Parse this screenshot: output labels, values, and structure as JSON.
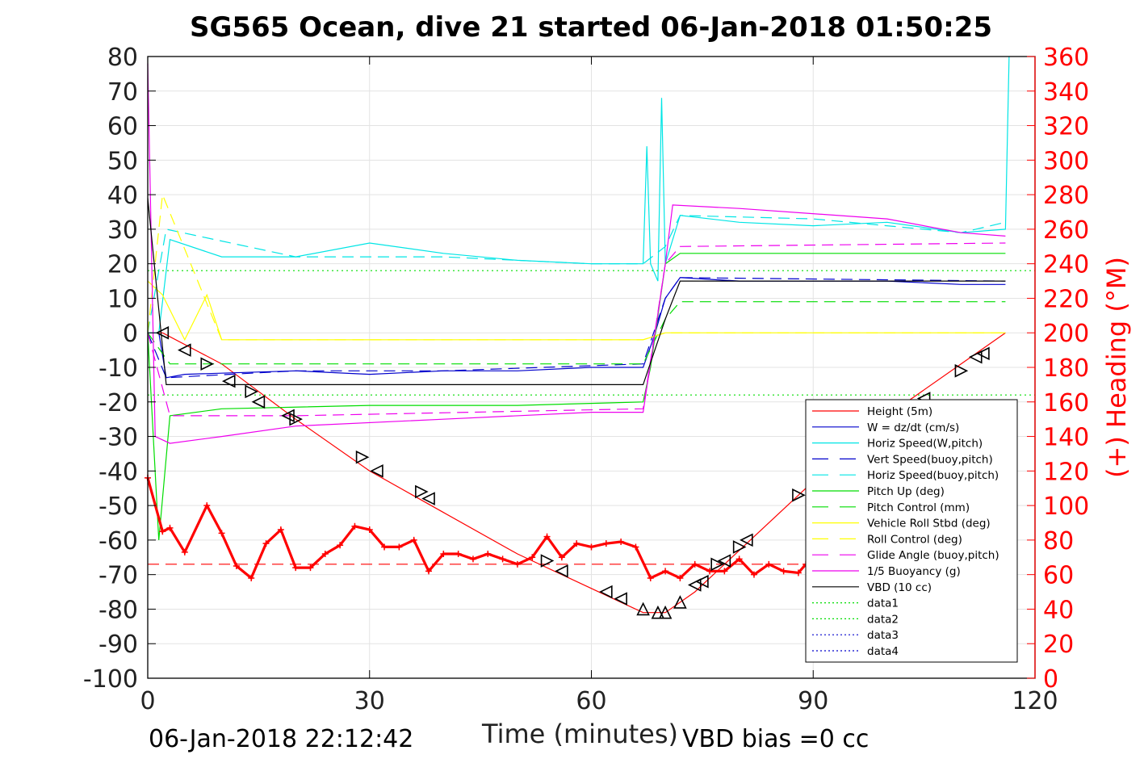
{
  "title": "SG565 Ocean, dive 21 started 06-Jan-2018 01:50:25",
  "footer": {
    "timestamp": "06-Jan-2018 22:12:42",
    "vbd_bias": "VBD bias =0 cc"
  },
  "chart_data": {
    "type": "line",
    "xlabel": "Time (minutes)",
    "ylabel": "",
    "y2label": "(+) Heading (°M)",
    "xlim": [
      0,
      120
    ],
    "ylim": [
      -100,
      80
    ],
    "y2lim": [
      0,
      360
    ],
    "xticks": [
      "0",
      "30",
      "60",
      "90",
      "120"
    ],
    "yticks": [
      "80",
      "70",
      "60",
      "50",
      "40",
      "30",
      "20",
      "10",
      "0",
      "-10",
      "-20",
      "-30",
      "-40",
      "-50",
      "-60",
      "-70",
      "-80",
      "-90",
      "-100"
    ],
    "y2ticks": [
      "360",
      "340",
      "320",
      "300",
      "280",
      "260",
      "240",
      "220",
      "200",
      "180",
      "160",
      "140",
      "120",
      "100",
      "80",
      "60",
      "40",
      "20",
      "0"
    ],
    "grid": true,
    "legend_position": "lower-right",
    "colors": {
      "right_axis": "#ff0000"
    },
    "legend": [
      {
        "label": "Height (5m)",
        "color": "#ff0000",
        "style": "solid"
      },
      {
        "label": "W = dz/dt (cm/s)",
        "color": "#0000cc",
        "style": "solid"
      },
      {
        "label": "Horiz Speed(W,pitch)",
        "color": "#00e5e5",
        "style": "solid"
      },
      {
        "label": "Vert Speed(buoy,pitch)",
        "color": "#0000cc",
        "style": "dashed"
      },
      {
        "label": "Horiz Speed(buoy,pitch)",
        "color": "#00e5e5",
        "style": "dashed"
      },
      {
        "label": "Pitch Up (deg)",
        "color": "#00dd00",
        "style": "solid"
      },
      {
        "label": "Pitch Control (mm)",
        "color": "#00dd00",
        "style": "dashed"
      },
      {
        "label": "Vehicle Roll Stbd (deg)",
        "color": "#ffff00",
        "style": "solid"
      },
      {
        "label": "Roll Control (deg)",
        "color": "#ffff00",
        "style": "dashed"
      },
      {
        "label": "Glide Angle (buoy,pitch)",
        "color": "#ee00ee",
        "style": "dashed"
      },
      {
        "label": "1/5 Buoyancy (g)",
        "color": "#ee00ee",
        "style": "solid"
      },
      {
        "label": "VBD (10 cc)",
        "color": "#000000",
        "style": "solid"
      },
      {
        "label": "data1",
        "color": "#00dd00",
        "style": "dotted"
      },
      {
        "label": "data2",
        "color": "#00dd00",
        "style": "dotted"
      },
      {
        "label": "data3",
        "color": "#0000cc",
        "style": "dotted"
      },
      {
        "label": "data4",
        "color": "#0000cc",
        "style": "dotted"
      }
    ],
    "series": [
      {
        "name": "Height (5m)",
        "x": [
          0,
          2,
          10,
          20,
          30,
          40,
          50,
          60,
          64,
          67,
          70,
          74,
          80,
          90,
          100,
          110,
          116
        ],
        "y": [
          0,
          0,
          -9,
          -25,
          -40,
          -52,
          -64,
          -74,
          -78,
          -81,
          -81,
          -75,
          -63,
          -43,
          -24,
          -9,
          0
        ]
      },
      {
        "name": "W = dz/dt (cm/s)",
        "x": [
          0,
          1.5,
          2.5,
          5,
          20,
          30,
          40,
          50,
          60,
          67,
          68.5,
          70,
          72,
          80,
          90,
          100,
          110,
          116
        ],
        "y": [
          0,
          0,
          -13,
          -12,
          -11,
          -12,
          -11,
          -11,
          -10,
          -10,
          -1,
          10,
          16,
          15,
          15,
          15,
          14,
          14
        ]
      },
      {
        "name": "Horiz Speed(W,pitch)",
        "x": [
          0,
          1.5,
          3,
          10,
          20,
          30,
          40,
          50,
          60,
          67,
          67.5,
          68,
          69,
          69.5,
          70,
          72,
          80,
          90,
          100,
          110,
          116,
          116.5
        ],
        "y": [
          0,
          0,
          27,
          22,
          22,
          26,
          23,
          21,
          20,
          20,
          54,
          20,
          15,
          68,
          20,
          34,
          32,
          31,
          32,
          29,
          30,
          80
        ]
      },
      {
        "name": "Vert Speed(buoy,pitch)",
        "x": [
          0,
          2.5,
          20,
          40,
          67,
          70,
          72,
          116
        ],
        "y": [
          0,
          -13,
          -11,
          -11,
          -9,
          10,
          16,
          15
        ]
      },
      {
        "name": "Horiz Speed(buoy,pitch)",
        "x": [
          0,
          2.5,
          20,
          40,
          60,
          67,
          70,
          72,
          90,
          110,
          116
        ],
        "y": [
          0,
          30,
          22,
          22,
          20,
          20,
          25,
          34,
          33,
          29,
          32
        ]
      },
      {
        "name": "Pitch Up (deg)",
        "x": [
          0,
          1.5,
          3,
          10,
          30,
          50,
          67,
          68,
          70,
          72,
          90,
          116
        ],
        "y": [
          0,
          -60,
          -24,
          -22,
          -21,
          -21,
          -20,
          -10,
          20,
          23,
          23,
          23
        ]
      },
      {
        "name": "Pitch Control (mm)",
        "x": [
          0,
          3,
          67,
          70,
          72,
          116
        ],
        "y": [
          0,
          -9,
          -9,
          4,
          9,
          9
        ]
      },
      {
        "name": "Vehicle Roll Stbd (deg)",
        "x": [
          0,
          2,
          5,
          8,
          10,
          20,
          30,
          40,
          60,
          67,
          70,
          72,
          90,
          110,
          116
        ],
        "y": [
          15,
          11,
          -2,
          11,
          -2,
          -2,
          -2,
          -2,
          -2,
          -2,
          0,
          0,
          0,
          0,
          0
        ]
      },
      {
        "name": "Roll Control (deg)",
        "x": [
          0,
          2,
          10,
          30,
          60,
          67,
          70,
          80,
          116
        ],
        "y": [
          0,
          40,
          -2,
          -2,
          -2,
          -2,
          0,
          0,
          0
        ]
      },
      {
        "name": "Glide Angle (buoy,pitch)",
        "x": [
          0,
          3,
          20,
          67,
          70,
          72,
          116
        ],
        "y": [
          0,
          -24,
          -24,
          -22,
          20,
          25,
          26
        ]
      },
      {
        "name": "1/5 Buoyancy (g)",
        "x": [
          0,
          1,
          3,
          10,
          20,
          40,
          60,
          67,
          70,
          71,
          80,
          100,
          110,
          116
        ],
        "y": [
          78,
          -30,
          -32,
          -30,
          -27,
          -25,
          -23,
          -23,
          20,
          37,
          36,
          33,
          29,
          28
        ]
      },
      {
        "name": "VBD (10 cc)",
        "x": [
          0,
          2.5,
          10,
          30,
          60,
          67,
          70,
          72,
          100,
          116
        ],
        "y": [
          39,
          -15,
          -15,
          -15,
          -15,
          -15,
          4,
          15,
          15,
          15
        ]
      },
      {
        "name": "data1",
        "x": [
          0,
          120
        ],
        "y": [
          18,
          18
        ]
      },
      {
        "name": "data2",
        "x": [
          0,
          120
        ],
        "y": [
          -18,
          -18
        ]
      },
      {
        "name": "Heading",
        "axis": "right",
        "x": [
          0,
          2,
          3,
          5,
          8,
          10,
          12,
          14,
          16,
          18,
          20,
          22,
          24,
          26,
          28,
          30,
          32,
          34,
          36,
          38,
          40,
          42,
          44,
          46,
          48,
          50,
          52,
          54,
          56,
          58,
          60,
          62,
          64,
          66,
          68,
          70,
          72,
          74,
          76,
          78,
          80,
          82,
          84,
          86,
          88,
          89
        ],
        "y": [
          116,
          85,
          87,
          73,
          100,
          84,
          65,
          58,
          78,
          86,
          64,
          64,
          72,
          77,
          88,
          86,
          76,
          76,
          80,
          62,
          72,
          72,
          69,
          72,
          69,
          66,
          70,
          82,
          70,
          78,
          76,
          78,
          79,
          76,
          58,
          62,
          58,
          66,
          62,
          62,
          69,
          60,
          66,
          62,
          61,
          66
        ]
      },
      {
        "name": "Heading target",
        "axis": "right",
        "style": "dashed",
        "x": [
          0,
          90
        ],
        "y": [
          66,
          66
        ]
      }
    ],
    "markers": {
      "right_triangles": [
        [
          8,
          -9
        ],
        [
          14,
          -17
        ],
        [
          20,
          -25
        ],
        [
          29,
          -36
        ],
        [
          37,
          -46
        ],
        [
          54,
          -66
        ],
        [
          88,
          -47
        ],
        [
          80,
          -62
        ],
        [
          77,
          -67
        ],
        [
          110,
          -11
        ]
      ],
      "left_triangles": [
        [
          2,
          0
        ],
        [
          5,
          -5
        ],
        [
          11,
          -14
        ],
        [
          15,
          -20
        ],
        [
          19,
          -24
        ],
        [
          31,
          -40
        ],
        [
          38,
          -48
        ],
        [
          56,
          -69
        ],
        [
          62,
          -75
        ],
        [
          64,
          -77
        ],
        [
          74,
          -73
        ],
        [
          75,
          -72
        ],
        [
          78,
          -66
        ],
        [
          81,
          -60
        ],
        [
          105,
          -19
        ],
        [
          112,
          -7
        ],
        [
          113,
          -6
        ]
      ],
      "up_triangles": [
        [
          67,
          -80
        ],
        [
          69,
          -81
        ],
        [
          70,
          -81
        ],
        [
          72,
          -78
        ]
      ]
    }
  }
}
